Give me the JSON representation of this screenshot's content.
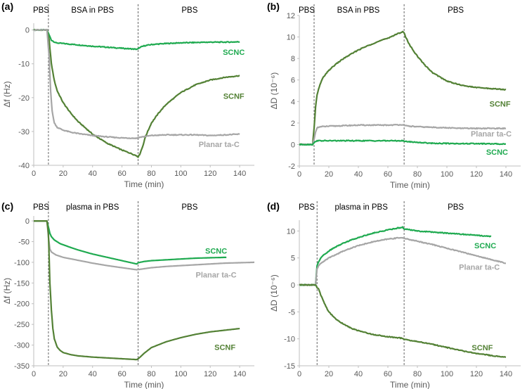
{
  "chart_data": [
    {
      "id": "a",
      "type": "line",
      "panel_label": "(a)",
      "xlabel": "Time (min)",
      "ylabel": "Δf (Hz)",
      "xlim": [
        0,
        150
      ],
      "ylim": [
        -40,
        2
      ],
      "xticks": [
        0,
        20,
        40,
        60,
        80,
        100,
        120,
        140
      ],
      "yticks": [
        0,
        -10,
        -20,
        -30,
        -40
      ],
      "phase_lines": [
        10,
        71
      ],
      "phases": [
        {
          "text": "PBS",
          "x": 5
        },
        {
          "text": "BSA in PBS",
          "x": 40
        },
        {
          "text": "PBS",
          "x": 106
        }
      ],
      "series": [
        {
          "name": "SCNC",
          "color": "#1faa50",
          "noisy": true,
          "x": [
            0,
            9,
            10.5,
            12,
            15,
            20,
            30,
            40,
            50,
            60,
            70,
            71,
            72,
            75,
            80,
            90,
            100,
            110,
            120,
            130,
            140
          ],
          "y": [
            0,
            0,
            -1.5,
            -3.0,
            -3.8,
            -4.0,
            -4.4,
            -4.8,
            -5.1,
            -5.4,
            -5.7,
            -5.6,
            -5.2,
            -4.7,
            -4.3,
            -4.0,
            -3.8,
            -3.7,
            -3.6,
            -3.6,
            -3.5
          ]
        },
        {
          "name": "SCNF",
          "color": "#538135",
          "noisy": true,
          "x": [
            0,
            9,
            10.5,
            12,
            14,
            16,
            20,
            25,
            30,
            40,
            50,
            60,
            65,
            70,
            71,
            72,
            74,
            76,
            80,
            85,
            90,
            100,
            110,
            120,
            130,
            140
          ],
          "y": [
            0,
            0,
            -3,
            -10,
            -15,
            -18,
            -21.5,
            -24.5,
            -27,
            -30.8,
            -33.5,
            -35.5,
            -36.3,
            -37.2,
            -37.5,
            -36.8,
            -34.5,
            -31.5,
            -27.5,
            -24.5,
            -22,
            -18.5,
            -16.2,
            -14.8,
            -14,
            -13.5
          ]
        },
        {
          "name": "Planar ta-C",
          "color": "#a6a6a6",
          "noisy": true,
          "x": [
            0,
            9,
            10.5,
            11.5,
            12.5,
            14,
            16,
            20,
            25,
            30,
            40,
            50,
            60,
            70,
            71,
            75,
            80,
            90,
            100,
            110,
            120,
            130,
            140
          ],
          "y": [
            0,
            0,
            -8,
            -18,
            -24,
            -27.5,
            -28.8,
            -29.6,
            -30.2,
            -30.6,
            -31.2,
            -31.6,
            -31.9,
            -32.0,
            -31.8,
            -31.5,
            -31.2,
            -31.0,
            -31.0,
            -31.0,
            -31.2,
            -31.0,
            -30.8
          ]
        }
      ],
      "labels": [
        {
          "text": "SCNC",
          "color": "#1faa50",
          "x": 136,
          "y": -6.5
        },
        {
          "text": "SCNF",
          "color": "#538135",
          "x": 136,
          "y": -19.5
        },
        {
          "text": "Planar ta-C",
          "color": "#a6a6a6",
          "x": 126,
          "y": -33.8
        }
      ]
    },
    {
      "id": "b",
      "type": "line",
      "panel_label": "(b)",
      "xlabel": "Time (min)",
      "ylabel": "ΔD (10⁻⁶)",
      "xlim": [
        0,
        150
      ],
      "ylim": [
        -2,
        12
      ],
      "xticks": [
        0,
        20,
        40,
        60,
        80,
        100,
        120,
        140
      ],
      "yticks": [
        -2,
        0,
        2,
        4,
        6,
        8,
        10,
        12
      ],
      "phase_lines": [
        10,
        71
      ],
      "phases": [
        {
          "text": "PBS",
          "x": 5
        },
        {
          "text": "BSA in PBS",
          "x": 40
        },
        {
          "text": "PBS",
          "x": 106
        }
      ],
      "series": [
        {
          "name": "SCNF",
          "color": "#538135",
          "noisy": true,
          "x": [
            0,
            9,
            10,
            11,
            12,
            14,
            16,
            20,
            25,
            30,
            40,
            50,
            60,
            65,
            70,
            71,
            72,
            75,
            80,
            85,
            90,
            100,
            110,
            120,
            130,
            140
          ],
          "y": [
            0,
            0,
            1.5,
            3.5,
            4.6,
            5.6,
            6.2,
            6.9,
            7.5,
            8.0,
            8.8,
            9.4,
            9.9,
            10.2,
            10.5,
            10.4,
            10.0,
            9.2,
            8.2,
            7.4,
            6.7,
            5.9,
            5.5,
            5.3,
            5.2,
            5.1
          ]
        },
        {
          "name": "Planar ta-C",
          "color": "#a6a6a6",
          "noisy": true,
          "x": [
            0,
            9,
            10,
            11,
            12,
            14,
            20,
            30,
            40,
            50,
            60,
            70,
            71,
            80,
            90,
            100,
            110,
            120,
            130,
            140
          ],
          "y": [
            0,
            0,
            0.5,
            1.2,
            1.55,
            1.65,
            1.7,
            1.75,
            1.8,
            1.8,
            1.8,
            1.85,
            1.75,
            1.65,
            1.6,
            1.55,
            1.5,
            1.5,
            1.5,
            1.5
          ]
        },
        {
          "name": "SCNC",
          "color": "#1faa50",
          "noisy": true,
          "x": [
            0,
            9,
            10,
            11,
            12,
            20,
            30,
            40,
            50,
            60,
            70,
            71,
            80,
            90,
            100,
            110,
            120,
            130,
            140
          ],
          "y": [
            0,
            0,
            0.15,
            0.3,
            0.35,
            0.35,
            0.35,
            0.35,
            0.35,
            0.35,
            0.35,
            0.3,
            0.2,
            0.12,
            0.1,
            0.08,
            0.08,
            0.06,
            0.05
          ]
        }
      ],
      "labels": [
        {
          "text": "SCNF",
          "color": "#538135",
          "x": 136,
          "y": 3.8
        },
        {
          "text": "Planar ta-C",
          "color": "#a6a6a6",
          "x": 130,
          "y": 1.0
        },
        {
          "text": "SCNC",
          "color": "#1faa50",
          "x": 134,
          "y": -0.7
        }
      ]
    },
    {
      "id": "c",
      "type": "line",
      "panel_label": "(c)",
      "xlabel": "Time (min)",
      "ylabel": "Δf (Hz)",
      "xlim": [
        0,
        150
      ],
      "ylim": [
        -350,
        12
      ],
      "xticks": [
        0,
        20,
        40,
        60,
        80,
        100,
        120,
        140
      ],
      "yticks": [
        0,
        -50,
        -100,
        -150,
        -200,
        -250,
        -300,
        -350
      ],
      "phase_lines": [
        10,
        71
      ],
      "phases": [
        {
          "text": "PBS",
          "x": 5
        },
        {
          "text": "plasma in PBS",
          "x": 40
        },
        {
          "text": "PBS",
          "x": 106
        }
      ],
      "series": [
        {
          "name": "SCNC",
          "color": "#1faa50",
          "noisy": false,
          "x": [
            0,
            9,
            10,
            11,
            12,
            14,
            18,
            25,
            30,
            40,
            50,
            60,
            70,
            71,
            75,
            80,
            90,
            100,
            110,
            120,
            131
          ],
          "y": [
            0,
            0,
            -15,
            -30,
            -38,
            -46,
            -55,
            -64,
            -70,
            -80,
            -88,
            -96,
            -104,
            -101,
            -98,
            -96,
            -94,
            -92,
            -90,
            -89,
            -88
          ]
        },
        {
          "name": "Planar ta-C",
          "color": "#a6a6a6",
          "noisy": false,
          "x": [
            0,
            9,
            10,
            11,
            12,
            15,
            20,
            30,
            40,
            50,
            60,
            70,
            72,
            80,
            90,
            100,
            110,
            120,
            130,
            140,
            150
          ],
          "y": [
            0,
            0,
            -40,
            -68,
            -75,
            -82,
            -88,
            -95,
            -102,
            -108,
            -113,
            -118,
            -117,
            -113,
            -110,
            -108,
            -106,
            -104,
            -102,
            -101,
            -100
          ]
        },
        {
          "name": "SCNF",
          "color": "#538135",
          "noisy": false,
          "x": [
            0,
            9,
            10,
            10.5,
            11,
            12,
            13,
            14,
            16,
            18,
            20,
            25,
            30,
            40,
            50,
            60,
            70,
            71,
            72,
            75,
            80,
            90,
            100,
            110,
            120,
            130,
            140
          ],
          "y": [
            0,
            0,
            -30,
            -90,
            -150,
            -215,
            -260,
            -285,
            -305,
            -313,
            -318,
            -323,
            -326,
            -329,
            -331,
            -333,
            -335,
            -333,
            -330,
            -320,
            -306,
            -292,
            -282,
            -274,
            -268,
            -264,
            -260
          ]
        }
      ],
      "labels": [
        {
          "text": "SCNC",
          "color": "#1faa50",
          "x": 124,
          "y": -72
        },
        {
          "text": "Planar ta-C",
          "color": "#a6a6a6",
          "x": 124,
          "y": -130
        },
        {
          "text": "SCNF",
          "color": "#538135",
          "x": 130,
          "y": -305
        }
      ]
    },
    {
      "id": "d",
      "type": "line",
      "panel_label": "(d)",
      "xlabel": "Time (min)",
      "ylabel": "ΔD (10⁻⁶)",
      "xlim": [
        0,
        150
      ],
      "ylim": [
        -15,
        12
      ],
      "xticks": [
        0,
        20,
        40,
        60,
        80,
        100,
        120,
        140
      ],
      "yticks": [
        10,
        5,
        0,
        -5,
        -10,
        -15
      ],
      "phase_lines": [
        12,
        71
      ],
      "phases": [
        {
          "text": "PBS",
          "x": 5
        },
        {
          "text": "plasma in PBS",
          "x": 42
        },
        {
          "text": "PBS",
          "x": 106
        }
      ],
      "series": [
        {
          "name": "SCNC",
          "color": "#1faa50",
          "noisy": true,
          "x": [
            0,
            11,
            12,
            13,
            15,
            20,
            25,
            30,
            40,
            50,
            60,
            70,
            71,
            75,
            80,
            90,
            100,
            110,
            120,
            130
          ],
          "y": [
            0,
            0,
            3.5,
            4.3,
            5.2,
            6.3,
            7.1,
            7.8,
            8.8,
            9.6,
            10.2,
            10.7,
            10.4,
            10.2,
            10.0,
            9.8,
            9.6,
            9.4,
            9.2,
            9.0
          ]
        },
        {
          "name": "Planar ta-C",
          "color": "#a6a6a6",
          "noisy": true,
          "x": [
            0,
            11,
            12,
            13,
            15,
            20,
            30,
            40,
            50,
            60,
            70,
            71,
            75,
            80,
            90,
            100,
            110,
            120,
            130,
            140
          ],
          "y": [
            0,
            0,
            3.0,
            3.5,
            4.1,
            5.0,
            6.3,
            7.3,
            8.0,
            8.5,
            8.8,
            8.6,
            8.4,
            8.1,
            7.5,
            6.8,
            6.1,
            5.4,
            4.7,
            4.0
          ]
        },
        {
          "name": "SCNF",
          "color": "#538135",
          "noisy": true,
          "x": [
            0,
            11,
            12,
            13,
            14,
            16,
            18,
            20,
            25,
            30,
            35,
            40,
            50,
            60,
            70,
            71,
            75,
            80,
            90,
            100,
            110,
            120,
            130,
            140
          ],
          "y": [
            0,
            0,
            -0.5,
            -0.8,
            -1.5,
            -2.8,
            -4.0,
            -5.0,
            -6.4,
            -7.3,
            -8.0,
            -8.5,
            -9.2,
            -9.6,
            -9.9,
            -10.1,
            -10.3,
            -10.5,
            -11.0,
            -11.6,
            -12.2,
            -12.7,
            -13.1,
            -13.4
          ]
        }
      ],
      "labels": [
        {
          "text": "SCNC",
          "color": "#1faa50",
          "x": 126,
          "y": 7.3
        },
        {
          "text": "Planar ta-C",
          "color": "#a6a6a6",
          "x": 122,
          "y": 3.3
        },
        {
          "text": "SCNF",
          "color": "#538135",
          "x": 124,
          "y": -11.6
        }
      ]
    }
  ]
}
